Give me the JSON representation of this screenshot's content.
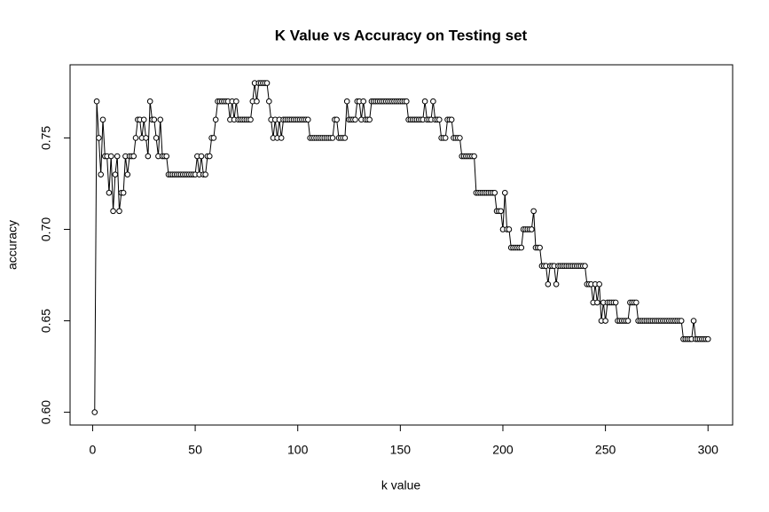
{
  "chart_data": {
    "type": "line",
    "title": "K Value vs Accuracy on Testing set",
    "x_label": "k value",
    "y_label": "accuracy",
    "x": [
      1,
      2,
      3,
      4,
      5,
      6,
      7,
      8,
      9,
      10,
      11,
      12,
      13,
      14,
      15,
      16,
      17,
      18,
      19,
      20,
      21,
      22,
      23,
      24,
      25,
      26,
      27,
      28,
      29,
      30,
      31,
      32,
      33,
      34,
      35,
      36,
      37,
      38,
      39,
      40,
      41,
      42,
      43,
      44,
      45,
      46,
      47,
      48,
      49,
      50,
      51,
      52,
      53,
      54,
      55,
      56,
      57,
      58,
      59,
      60,
      61,
      62,
      63,
      64,
      65,
      66,
      67,
      68,
      69,
      70,
      71,
      72,
      73,
      74,
      75,
      76,
      77,
      78,
      79,
      80,
      81,
      82,
      83,
      84,
      85,
      86,
      87,
      88,
      89,
      90,
      91,
      92,
      93,
      94,
      95,
      96,
      97,
      98,
      99,
      100,
      101,
      102,
      103,
      104,
      105,
      106,
      107,
      108,
      109,
      110,
      111,
      112,
      113,
      114,
      115,
      116,
      117,
      118,
      119,
      120,
      121,
      122,
      123,
      124,
      125,
      126,
      127,
      128,
      129,
      130,
      131,
      132,
      133,
      134,
      135,
      136,
      137,
      138,
      139,
      140,
      141,
      142,
      143,
      144,
      145,
      146,
      147,
      148,
      149,
      150,
      151,
      152,
      153,
      154,
      155,
      156,
      157,
      158,
      159,
      160,
      161,
      162,
      163,
      164,
      165,
      166,
      167,
      168,
      169,
      170,
      171,
      172,
      173,
      174,
      175,
      176,
      177,
      178,
      179,
      180,
      181,
      182,
      183,
      184,
      185,
      186,
      187,
      188,
      189,
      190,
      191,
      192,
      193,
      194,
      195,
      196,
      197,
      198,
      199,
      200,
      201,
      202,
      203,
      204,
      205,
      206,
      207,
      208,
      209,
      210,
      211,
      212,
      213,
      214,
      215,
      216,
      217,
      218,
      219,
      220,
      221,
      222,
      223,
      224,
      225,
      226,
      227,
      228,
      229,
      230,
      231,
      232,
      233,
      234,
      235,
      236,
      237,
      238,
      239,
      240,
      241,
      242,
      243,
      244,
      245,
      246,
      247,
      248,
      249,
      250,
      251,
      252,
      253,
      254,
      255,
      256,
      257,
      258,
      259,
      260,
      261,
      262,
      263,
      264,
      265,
      266,
      267,
      268,
      269,
      270,
      271,
      272,
      273,
      274,
      275,
      276,
      277,
      278,
      279,
      280,
      281,
      282,
      283,
      284,
      285,
      286,
      287,
      288,
      289,
      290,
      291,
      292,
      293,
      294,
      295,
      296,
      297,
      298,
      299,
      300
    ],
    "series": [
      {
        "color": "#000000",
        "values": [
          0.6,
          0.77,
          0.75,
          0.73,
          0.76,
          0.74,
          0.74,
          0.72,
          0.74,
          0.71,
          0.73,
          0.74,
          0.71,
          0.72,
          0.72,
          0.74,
          0.73,
          0.74,
          0.74,
          0.74,
          0.75,
          0.76,
          0.76,
          0.75,
          0.76,
          0.75,
          0.74,
          0.77,
          0.76,
          0.76,
          0.75,
          0.74,
          0.76,
          0.74,
          0.74,
          0.74,
          0.73,
          0.73,
          0.73,
          0.73,
          0.73,
          0.73,
          0.73,
          0.73,
          0.73,
          0.73,
          0.73,
          0.73,
          0.73,
          0.73,
          0.74,
          0.73,
          0.74,
          0.73,
          0.73,
          0.74,
          0.74,
          0.75,
          0.75,
          0.76,
          0.77,
          0.77,
          0.77,
          0.77,
          0.77,
          0.77,
          0.76,
          0.77,
          0.76,
          0.77,
          0.76,
          0.76,
          0.76,
          0.76,
          0.76,
          0.76,
          0.76,
          0.77,
          0.78,
          0.77,
          0.78,
          0.78,
          0.78,
          0.78,
          0.78,
          0.77,
          0.76,
          0.75,
          0.76,
          0.75,
          0.76,
          0.75,
          0.76,
          0.76,
          0.76,
          0.76,
          0.76,
          0.76,
          0.76,
          0.76,
          0.76,
          0.76,
          0.76,
          0.76,
          0.76,
          0.75,
          0.75,
          0.75,
          0.75,
          0.75,
          0.75,
          0.75,
          0.75,
          0.75,
          0.75,
          0.75,
          0.75,
          0.76,
          0.76,
          0.75,
          0.75,
          0.75,
          0.75,
          0.77,
          0.76,
          0.76,
          0.76,
          0.76,
          0.77,
          0.77,
          0.76,
          0.77,
          0.76,
          0.76,
          0.76,
          0.77,
          0.77,
          0.77,
          0.77,
          0.77,
          0.77,
          0.77,
          0.77,
          0.77,
          0.77,
          0.77,
          0.77,
          0.77,
          0.77,
          0.77,
          0.77,
          0.77,
          0.77,
          0.76,
          0.76,
          0.76,
          0.76,
          0.76,
          0.76,
          0.76,
          0.76,
          0.77,
          0.76,
          0.76,
          0.76,
          0.77,
          0.76,
          0.76,
          0.76,
          0.75,
          0.75,
          0.75,
          0.76,
          0.76,
          0.76,
          0.75,
          0.75,
          0.75,
          0.75,
          0.74,
          0.74,
          0.74,
          0.74,
          0.74,
          0.74,
          0.74,
          0.72,
          0.72,
          0.72,
          0.72,
          0.72,
          0.72,
          0.72,
          0.72,
          0.72,
          0.72,
          0.71,
          0.71,
          0.71,
          0.7,
          0.72,
          0.7,
          0.7,
          0.69,
          0.69,
          0.69,
          0.69,
          0.69,
          0.69,
          0.7,
          0.7,
          0.7,
          0.7,
          0.7,
          0.71,
          0.69,
          0.69,
          0.69,
          0.68,
          0.68,
          0.68,
          0.67,
          0.68,
          0.68,
          0.68,
          0.67,
          0.68,
          0.68,
          0.68,
          0.68,
          0.68,
          0.68,
          0.68,
          0.68,
          0.68,
          0.68,
          0.68,
          0.68,
          0.68,
          0.68,
          0.67,
          0.67,
          0.67,
          0.66,
          0.67,
          0.66,
          0.67,
          0.65,
          0.66,
          0.65,
          0.66,
          0.66,
          0.66,
          0.66,
          0.66,
          0.65,
          0.65,
          0.65,
          0.65,
          0.65,
          0.65,
          0.66,
          0.66,
          0.66,
          0.66,
          0.65,
          0.65,
          0.65,
          0.65,
          0.65,
          0.65,
          0.65,
          0.65,
          0.65,
          0.65,
          0.65,
          0.65,
          0.65,
          0.65,
          0.65,
          0.65,
          0.65,
          0.65,
          0.65,
          0.65,
          0.65,
          0.65,
          0.64,
          0.64,
          0.64,
          0.64,
          0.64,
          0.65,
          0.64,
          0.64,
          0.64,
          0.64,
          0.64,
          0.64,
          0.64
        ]
      }
    ],
    "xlim": [
      -11,
      312
    ],
    "ylim": [
      0.593,
      0.79
    ],
    "xticks": [
      0,
      50,
      100,
      150,
      200,
      250,
      300
    ],
    "yticks": [
      {
        "value": 0.6,
        "label": "0.60"
      },
      0.65,
      {
        "value": 0.7,
        "label": "0.70"
      },
      0.75
    ]
  }
}
